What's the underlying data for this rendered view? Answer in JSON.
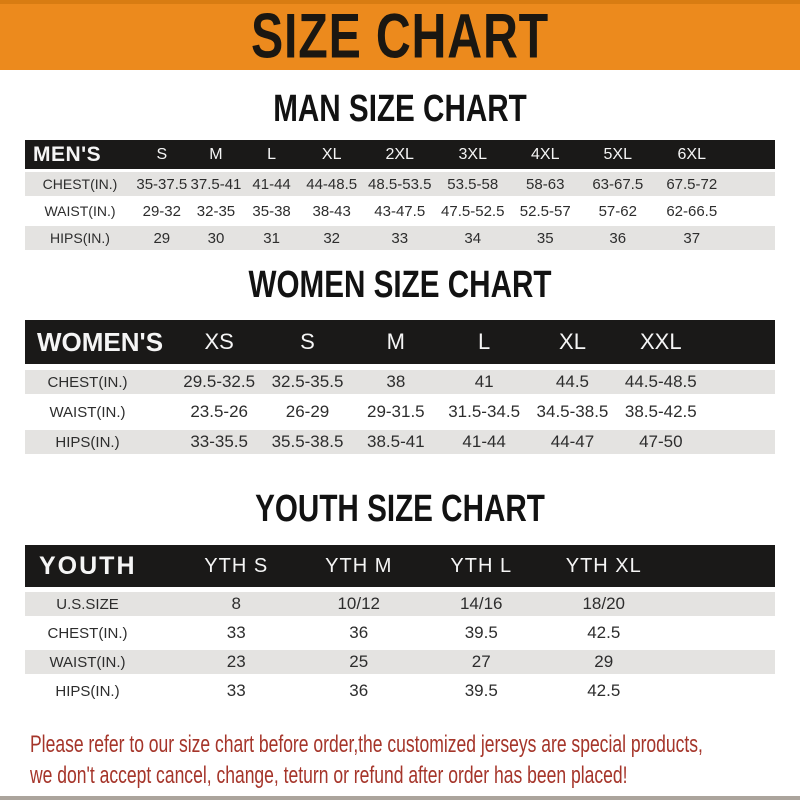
{
  "page": {
    "title": "SIZE CHART"
  },
  "sections": {
    "man": {
      "heading": "MAN SIZE CHART"
    },
    "women": {
      "heading": "WOMEN SIZE CHART"
    },
    "youth": {
      "heading": "YOUTH SIZE CHART"
    }
  },
  "tables": {
    "men": {
      "header_label": "MEN'S",
      "columns": [
        "S",
        "M",
        "L",
        "XL",
        "2XL",
        "3XL",
        "4XL",
        "5XL",
        "6XL"
      ],
      "rows": [
        {
          "label": "CHEST(IN.)",
          "values": [
            "35-37.5",
            "37.5-41",
            "41-44",
            "44-48.5",
            "48.5-53.5",
            "53.5-58",
            "58-63",
            "63-67.5",
            "67.5-72"
          ]
        },
        {
          "label": "WAIST(IN.)",
          "values": [
            "29-32",
            "32-35",
            "35-38",
            "38-43",
            "43-47.5",
            "47.5-52.5",
            "52.5-57",
            "57-62",
            "62-66.5"
          ]
        },
        {
          "label": "HIPS(IN.)",
          "values": [
            "29",
            "30",
            "31",
            "32",
            "33",
            "34",
            "35",
            "36",
            "37"
          ]
        }
      ]
    },
    "women": {
      "header_label": "WOMEN'S",
      "columns": [
        "XS",
        "S",
        "M",
        "L",
        "XL",
        "XXL"
      ],
      "rows": [
        {
          "label": "CHEST(IN.)",
          "values": [
            "29.5-32.5",
            "32.5-35.5",
            "38",
            "41",
            "44.5",
            "44.5-48.5"
          ]
        },
        {
          "label": "WAIST(IN.)",
          "values": [
            "23.5-26",
            "26-29",
            "29-31.5",
            "31.5-34.5",
            "34.5-38.5",
            "38.5-42.5"
          ]
        },
        {
          "label": "HIPS(IN.)",
          "values": [
            "33-35.5",
            "35.5-38.5",
            "38.5-41",
            "41-44",
            "44-47",
            "47-50"
          ]
        }
      ]
    },
    "youth": {
      "header_label": "YOUTH",
      "columns": [
        "YTH S",
        "YTH M",
        "YTH L",
        "YTH XL"
      ],
      "rows": [
        {
          "label": "U.S.SIZE",
          "values": [
            "8",
            "10/12",
            "14/16",
            "18/20"
          ]
        },
        {
          "label": "CHEST(IN.)",
          "values": [
            "33",
            "36",
            "39.5",
            "42.5"
          ]
        },
        {
          "label": "WAIST(IN.)",
          "values": [
            "23",
            "25",
            "27",
            "29"
          ]
        },
        {
          "label": "HIPS(IN.)",
          "values": [
            "33",
            "36",
            "39.5",
            "42.5"
          ]
        }
      ]
    }
  },
  "footer": {
    "line1": "Please refer to our size chart before order,the customized jerseys are special products,",
    "line2": "we don't accept cancel, change, teturn or refund after order has been placed!"
  },
  "colors": {
    "accent_orange": "#EC8A1D",
    "banner_top_edge": "#D87C12",
    "table_header_black": "#1A1918",
    "row_stripe_gray": "#E4E3E1",
    "data_text": "#2D2D2D",
    "footer_red": "#A5352A"
  }
}
